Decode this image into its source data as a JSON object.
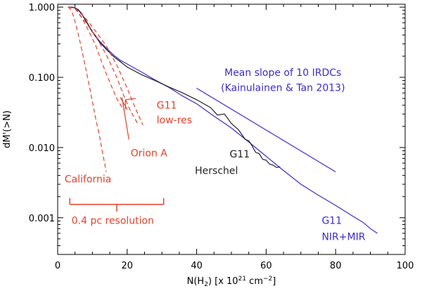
{
  "chart_data": {
    "type": "line",
    "title": "",
    "xlabel_parts": {
      "prefix": "N(H",
      "sub": "2",
      "mid": ")  [x 10",
      "sup1": "21",
      "unit": " cm",
      "sup2": "−2",
      "suffix": "]"
    },
    "ylabel": "dM'(>N)",
    "xlim": [
      0,
      100
    ],
    "ylim": [
      0.0003,
      1.1
    ],
    "yscale": "log",
    "x_ticks": [
      {
        "v": 0,
        "label": "0"
      },
      {
        "v": 20,
        "label": "20"
      },
      {
        "v": 40,
        "label": "40"
      },
      {
        "v": 60,
        "label": "60"
      },
      {
        "v": 80,
        "label": "80"
      },
      {
        "v": 100,
        "label": "100"
      }
    ],
    "y_ticks": [
      {
        "v": 1.0,
        "label": "1.000"
      },
      {
        "v": 0.1,
        "label": "0.100"
      },
      {
        "v": 0.01,
        "label": "0.010"
      },
      {
        "v": 0.001,
        "label": "0.001"
      }
    ],
    "series": [
      {
        "name": "G11 NIR+MIR",
        "color": "#3b2bd0",
        "style": "solid",
        "x": [
          3,
          4,
          5,
          6,
          7,
          8,
          10,
          12,
          14,
          16,
          18,
          20,
          24,
          28,
          32,
          36,
          40,
          45,
          50,
          55,
          60,
          65,
          70,
          75,
          80,
          85,
          88,
          90,
          92
        ],
        "y": [
          1.0,
          1.0,
          0.98,
          0.92,
          0.8,
          0.66,
          0.45,
          0.33,
          0.26,
          0.21,
          0.175,
          0.155,
          0.12,
          0.092,
          0.072,
          0.054,
          0.042,
          0.028,
          0.019,
          0.012,
          0.0075,
          0.0047,
          0.003,
          0.0021,
          0.0015,
          0.00105,
          0.00085,
          0.0007,
          0.0006
        ]
      },
      {
        "name": "G11 Herschel",
        "color": "#222222",
        "style": "solid",
        "x": [
          3,
          4,
          5,
          6,
          7,
          8,
          10,
          12,
          14,
          16,
          20,
          24,
          28,
          32,
          36,
          40,
          44,
          46,
          48,
          50,
          52,
          54,
          55,
          56,
          57,
          58,
          59,
          60,
          61,
          62,
          63,
          64
        ],
        "y": [
          1.0,
          1.0,
          0.97,
          0.9,
          0.79,
          0.65,
          0.44,
          0.32,
          0.25,
          0.2,
          0.14,
          0.11,
          0.09,
          0.073,
          0.06,
          0.048,
          0.037,
          0.029,
          0.03,
          0.022,
          0.018,
          0.013,
          0.0125,
          0.0105,
          0.0085,
          0.0082,
          0.0068,
          0.0066,
          0.0058,
          0.0056,
          0.0052,
          0.0053
        ]
      },
      {
        "name": "Mean slope of 10 IRDCs",
        "color": "#3b2bd0",
        "style": "solid",
        "x": [
          40,
          80
        ],
        "y": [
          0.07,
          0.0045
        ]
      },
      {
        "name": "G11 low-res",
        "color": "#e8402a",
        "style": "dashed",
        "x": [
          3,
          5,
          8,
          11,
          14,
          17,
          20,
          22,
          24.5
        ],
        "y": [
          1.0,
          0.97,
          0.7,
          0.45,
          0.28,
          0.15,
          0.07,
          0.04,
          0.021
        ]
      },
      {
        "name": "G11 low-res (2)",
        "color": "#e8402a",
        "style": "dashed",
        "x": [
          3,
          5,
          8,
          11,
          14,
          17,
          19,
          21,
          23
        ],
        "y": [
          1.0,
          0.95,
          0.62,
          0.38,
          0.21,
          0.1,
          0.055,
          0.033,
          0.022
        ]
      },
      {
        "name": "Orion A",
        "color": "#e8402a",
        "style": "dashed",
        "x": [
          3,
          5,
          7,
          9,
          11,
          13,
          15,
          17,
          19
        ],
        "y": [
          1.0,
          0.95,
          0.7,
          0.45,
          0.28,
          0.15,
          0.085,
          0.05,
          0.034
        ]
      },
      {
        "name": "California",
        "color": "#e8402a",
        "style": "dashed",
        "x": [
          3,
          4,
          5,
          6,
          7,
          8,
          9,
          10,
          11,
          12,
          13,
          14
        ],
        "y": [
          1.0,
          0.9,
          0.62,
          0.4,
          0.24,
          0.14,
          0.08,
          0.045,
          0.025,
          0.015,
          0.008,
          0.0045
        ]
      }
    ],
    "pointers": [
      {
        "from": [
          19.5,
          0.035
        ],
        "to": [
          19.5,
          0.048
        ]
      },
      {
        "from": [
          19.5,
          0.048
        ],
        "to": [
          22.5,
          0.05
        ]
      },
      {
        "from": [
          20,
          0.035
        ],
        "to": [
          18,
          0.052
        ]
      },
      {
        "from": [
          20.5,
          0.013
        ],
        "to": [
          18.5,
          0.052
        ]
      }
    ],
    "resolution_bar": {
      "x_start": 3.5,
      "x_end": 30.5,
      "x_mid": 17,
      "y": 0.00155,
      "label": "0.4 pc resolution"
    },
    "annotations": [
      {
        "id": "mean-slope-line1",
        "text": "Mean slope of 10 IRDCs",
        "color": "#3b2bd0",
        "x": 48,
        "y": 0.105
      },
      {
        "id": "mean-slope-line2",
        "text": "(Kainulainen & Tan 2013)",
        "color": "#3b2bd0",
        "x": 47,
        "y": 0.064
      },
      {
        "id": "g11-lowres-1",
        "text": "G11",
        "color": "#e8402a",
        "x": 28.5,
        "y": 0.036
      },
      {
        "id": "g11-lowres-2",
        "text": "low-res",
        "color": "#e8402a",
        "x": 28.5,
        "y": 0.022
      },
      {
        "id": "orion-a",
        "text": "Orion A",
        "color": "#e8402a",
        "x": 21,
        "y": 0.0075
      },
      {
        "id": "g11-herschel-1",
        "text": "G11",
        "color": "#222222",
        "x": 49.5,
        "y": 0.0072
      },
      {
        "id": "g11-herschel-2",
        "text": "Herschel",
        "color": "#222222",
        "x": 39.5,
        "y": 0.0042
      },
      {
        "id": "california",
        "text": "California",
        "color": "#e8402a",
        "x": 2,
        "y": 0.0032
      },
      {
        "id": "res-label",
        "text": "0.4 pc resolution",
        "color": "#e8402a",
        "x": 4,
        "y": 0.00082
      },
      {
        "id": "g11-nir-1",
        "text": "G11",
        "color": "#3b2bd0",
        "x": 76,
        "y": 0.00082
      },
      {
        "id": "g11-nir-2",
        "text": "NIR+MIR",
        "color": "#3b2bd0",
        "x": 76,
        "y": 0.00048
      }
    ]
  }
}
